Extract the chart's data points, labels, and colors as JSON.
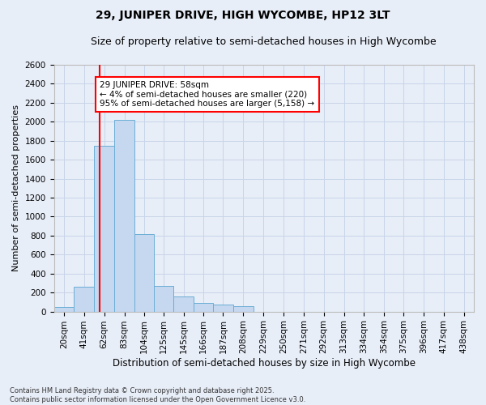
{
  "title": "29, JUNIPER DRIVE, HIGH WYCOMBE, HP12 3LT",
  "subtitle": "Size of property relative to semi-detached houses in High Wycombe",
  "xlabel": "Distribution of semi-detached houses by size in High Wycombe",
  "ylabel": "Number of semi-detached properties",
  "footnote": "Contains HM Land Registry data © Crown copyright and database right 2025.\nContains public sector information licensed under the Open Government Licence v3.0.",
  "annotation_title": "29 JUNIPER DRIVE: 58sqm",
  "annotation_line1": "← 4% of semi-detached houses are smaller (220)",
  "annotation_line2": "95% of semi-detached houses are larger (5,158) →",
  "bar_edges": [
    10,
    31,
    52,
    73,
    94,
    114,
    135,
    156,
    176,
    197,
    218,
    239,
    260,
    281,
    302,
    323,
    344,
    364,
    385,
    406,
    427,
    448
  ],
  "bar_heights": [
    50,
    260,
    1750,
    2020,
    820,
    270,
    155,
    90,
    70,
    55,
    0,
    0,
    0,
    0,
    0,
    0,
    0,
    0,
    0,
    0,
    0
  ],
  "bar_labels": [
    "20sqm",
    "41sqm",
    "62sqm",
    "83sqm",
    "104sqm",
    "125sqm",
    "145sqm",
    "166sqm",
    "187sqm",
    "208sqm",
    "229sqm",
    "250sqm",
    "271sqm",
    "292sqm",
    "313sqm",
    "334sqm",
    "354sqm",
    "375sqm",
    "396sqm",
    "417sqm",
    "438sqm"
  ],
  "bar_color": "#c5d8f0",
  "bar_edgecolor": "#6baed6",
  "grid_color": "#c8d4e8",
  "background_color": "#e8eef8",
  "red_line_x": 58,
  "ylim": [
    0,
    2600
  ],
  "yticks": [
    0,
    200,
    400,
    600,
    800,
    1000,
    1200,
    1400,
    1600,
    1800,
    2000,
    2200,
    2400,
    2600
  ],
  "title_fontsize": 10,
  "subtitle_fontsize": 9,
  "annotation_fontsize": 7.5,
  "tick_fontsize": 7.5,
  "ylabel_fontsize": 8,
  "xlabel_fontsize": 8.5
}
